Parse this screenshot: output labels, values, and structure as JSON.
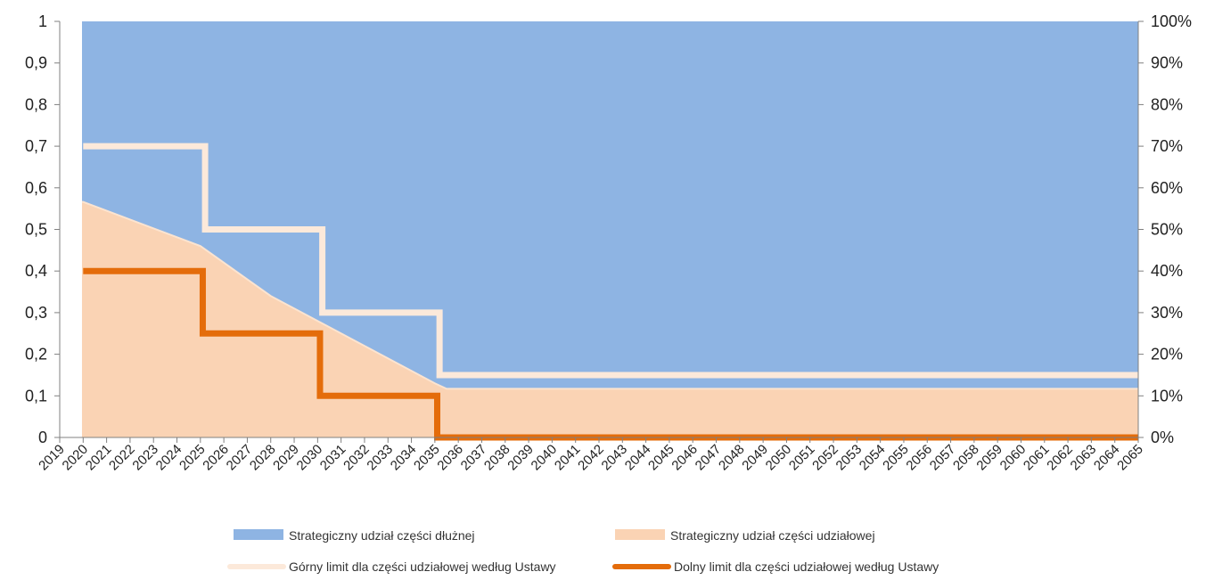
{
  "chart_data": {
    "type": "area",
    "x": [
      2019,
      2020,
      2021,
      2022,
      2023,
      2024,
      2025,
      2026,
      2027,
      2028,
      2029,
      2030,
      2031,
      2032,
      2033,
      2034,
      2035,
      2036,
      2037,
      2038,
      2039,
      2040,
      2041,
      2042,
      2043,
      2044,
      2045,
      2046,
      2047,
      2048,
      2049,
      2050,
      2051,
      2052,
      2053,
      2054,
      2055,
      2056,
      2057,
      2058,
      2059,
      2060,
      2061,
      2062,
      2063,
      2064,
      2065
    ],
    "x_tick_labels": [
      "2019",
      "2020",
      "2021",
      "2022",
      "2023",
      "2024",
      "2025",
      "2026",
      "2027",
      "2028",
      "2029",
      "2030",
      "2031",
      "2032",
      "2033",
      "2034",
      "2035",
      "2036",
      "2037",
      "2038",
      "2039",
      "2040",
      "2041",
      "2042",
      "2043",
      "2044",
      "2045",
      "2046",
      "2047",
      "2048",
      "2049",
      "2050",
      "2051",
      "2052",
      "2053",
      "2054",
      "2055",
      "2056",
      "2057",
      "2058",
      "2059",
      "2060",
      "2061",
      "2062",
      "2063",
      "2064",
      "2065"
    ],
    "y_left_ticks": [
      "0",
      "0,1",
      "0,2",
      "0,3",
      "0,4",
      "0,5",
      "0,6",
      "0,7",
      "0,8",
      "0,9",
      "1"
    ],
    "y_right_ticks": [
      "0%",
      "10%",
      "20%",
      "30%",
      "40%",
      "50%",
      "60%",
      "70%",
      "80%",
      "90%",
      "100%"
    ],
    "ylim": [
      0,
      1
    ],
    "series": [
      {
        "name": "Strategiczny udział części dłużnej",
        "kind": "stacked-area-top",
        "color": "#8EB4E3",
        "x": [
          2019.95,
          2020,
          2025,
          2026,
          2027,
          2028,
          2029,
          2030,
          2031,
          2032,
          2033,
          2034,
          2035,
          2035.5,
          2065
        ],
        "values": [
          1,
          0.434,
          0.54,
          0.58,
          0.62,
          0.66,
          0.69,
          0.72,
          0.75,
          0.78,
          0.81,
          0.84,
          0.87,
          0.883,
          0.883
        ]
      },
      {
        "name": "Strategiczny udział części udziałowej",
        "kind": "stacked-area-bottom",
        "color": "#FAD3B4",
        "x": [
          2019.95,
          2020,
          2025,
          2026,
          2027,
          2028,
          2029,
          2030,
          2031,
          2032,
          2033,
          2034,
          2035,
          2035.5,
          2065
        ],
        "values": [
          0.566,
          0.566,
          0.46,
          0.42,
          0.38,
          0.34,
          0.31,
          0.28,
          0.25,
          0.22,
          0.19,
          0.16,
          0.13,
          0.117,
          0.117
        ]
      },
      {
        "name": "Górny limit dla części udziałowej według Ustawy",
        "kind": "step-line",
        "color": "#FCE9DA",
        "x": [
          2020,
          2025.2,
          2025.2,
          2030.2,
          2030.2,
          2035.2,
          2035.2,
          2065
        ],
        "values": [
          0.7,
          0.7,
          0.5,
          0.5,
          0.3,
          0.3,
          0.15,
          0.15
        ]
      },
      {
        "name": "Dolny limit dla części udziałowej według Ustawy",
        "kind": "step-line",
        "color": "#E46C0A",
        "x": [
          2020,
          2025.1,
          2025.1,
          2030.1,
          2030.1,
          2035.1,
          2035.1,
          2065
        ],
        "values": [
          0.4,
          0.4,
          0.25,
          0.25,
          0.1,
          0.1,
          0,
          0
        ]
      }
    ],
    "legend_placement": "bottom",
    "grid": false
  }
}
